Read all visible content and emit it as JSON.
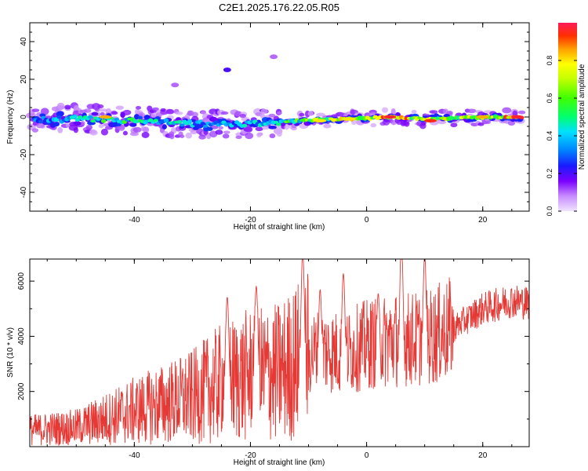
{
  "title": "C2E1.2025.176.22.05.R05",
  "charts": [
    {
      "type": "heatmap",
      "xlabel": "Height of straight line (km)",
      "ylabel": "Frequency (Hz)",
      "xlim": [
        -58,
        28
      ],
      "ylim": [
        -50,
        50
      ],
      "xticks": [
        -40,
        -20,
        0,
        20
      ],
      "yticks": [
        -40,
        -20,
        0,
        20,
        40
      ],
      "colorbar": {
        "label": "Normalized spectral amplitude",
        "range": [
          0,
          1
        ],
        "ticks": [
          0.0,
          0.2,
          0.4,
          0.6,
          0.8
        ],
        "tick_labels": [
          "0.0",
          "0.2",
          "0.4",
          "0.6",
          "0.8"
        ]
      },
      "band": {
        "description_points": [
          {
            "x": -56,
            "y": -1.5,
            "amp": 0.35
          },
          {
            "x": -50,
            "y": -1,
            "amp": 0.45
          },
          {
            "x": -44,
            "y": -1.5,
            "amp": 0.6
          },
          {
            "x": -38,
            "y": -2.5,
            "amp": 0.5
          },
          {
            "x": -32,
            "y": -3.5,
            "amp": 0.45
          },
          {
            "x": -26,
            "y": -4,
            "amp": 0.4
          },
          {
            "x": -20,
            "y": -3.5,
            "amp": 0.45
          },
          {
            "x": -14,
            "y": -2.5,
            "amp": 0.6
          },
          {
            "x": -8,
            "y": -1.5,
            "amp": 0.7
          },
          {
            "x": -2,
            "y": -1,
            "amp": 0.8
          },
          {
            "x": 4,
            "y": 0,
            "amp": 0.9
          },
          {
            "x": 10,
            "y": -1,
            "amp": 0.85
          },
          {
            "x": 16,
            "y": -0.5,
            "amp": 0.75
          },
          {
            "x": 22,
            "y": 0,
            "amp": 0.8
          },
          {
            "x": 26,
            "y": 0,
            "amp": 0.95
          }
        ]
      },
      "hotspots": [
        {
          "x": 4,
          "y": 0,
          "amp": 0.97
        },
        {
          "x": 11,
          "y": -2,
          "amp": 0.95
        },
        {
          "x": 26,
          "y": 0,
          "amp": 0.97
        },
        {
          "x": -45,
          "y": 0,
          "amp": 0.85
        },
        {
          "x": -8,
          "y": -2,
          "amp": 0.8
        },
        {
          "x": -3,
          "y": -1,
          "amp": 0.8
        },
        {
          "x": 20,
          "y": 0,
          "amp": 0.85
        },
        {
          "x": -24,
          "y": 25,
          "amp": 0.2
        },
        {
          "x": -16,
          "y": 32,
          "amp": 0.1
        },
        {
          "x": -33,
          "y": 17,
          "amp": 0.1
        }
      ]
    },
    {
      "type": "line",
      "xlabel": "Height of straight line (km)",
      "ylabel": "SNR (10 * v/v)",
      "xlim": [
        -58,
        28
      ],
      "ylim": [
        0,
        6800
      ],
      "xticks": [
        -40,
        -20,
        0,
        20
      ],
      "yticks": [
        2000,
        4000,
        6000
      ],
      "color": "#e53935",
      "envelope": {
        "x": [
          -58,
          -50,
          -40,
          -30,
          -25,
          -20,
          -15,
          -11,
          -8,
          -4,
          0,
          5,
          10,
          15,
          20,
          25,
          28
        ],
        "y": [
          600,
          700,
          1300,
          1800,
          2300,
          2600,
          2700,
          3200,
          3500,
          3400,
          3700,
          3900,
          3900,
          4300,
          5000,
          5300,
          5200
        ]
      },
      "peaks": [
        {
          "x": -11,
          "y": 6450
        },
        {
          "x": 6,
          "y": 6750
        },
        {
          "x": 10,
          "y": 6200
        },
        {
          "x": -4,
          "y": 5600
        },
        {
          "x": -19,
          "y": 5300
        },
        {
          "x": -24,
          "y": 4950
        },
        {
          "x": -8,
          "y": 5000
        },
        {
          "x": 2,
          "y": 4800
        }
      ]
    }
  ],
  "colors": {
    "axis": "#000000",
    "line": "#e53935"
  }
}
